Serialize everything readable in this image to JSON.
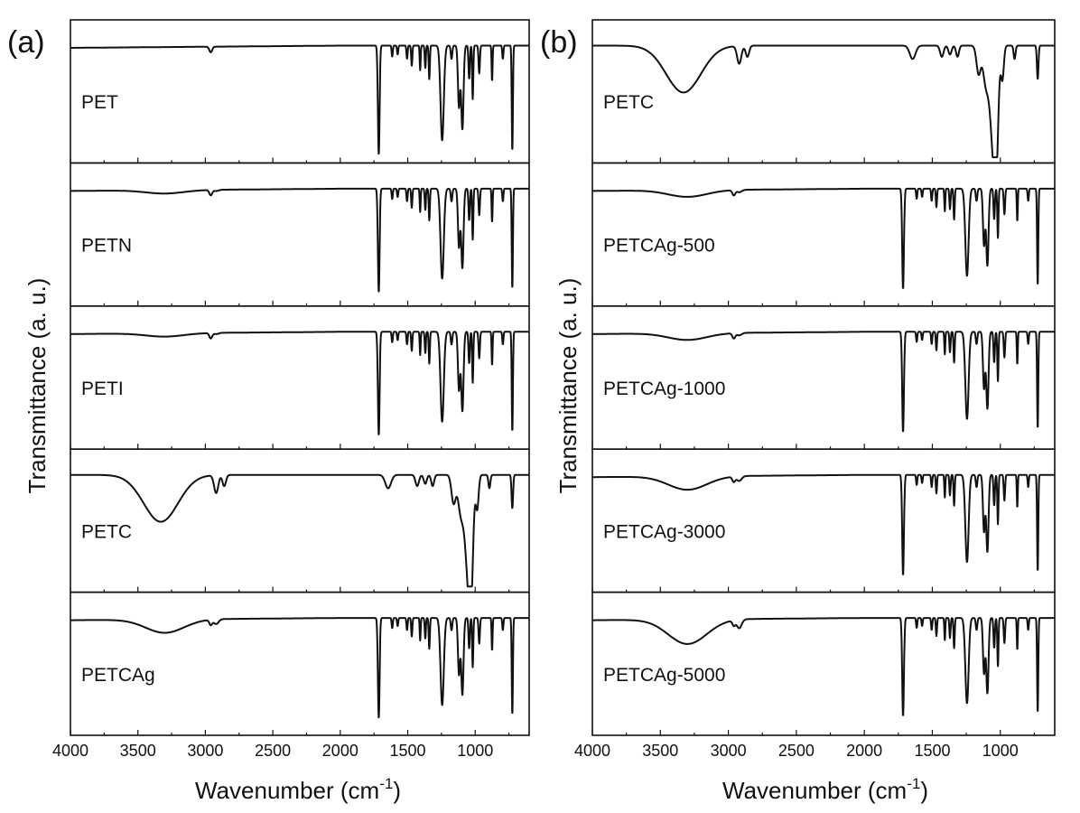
{
  "chart_data": [
    {
      "type": "line",
      "panel_label": "(a)",
      "xlabel": "Wavenumber (cm",
      "xlabel_sup": "-1",
      "xlabel_close": ")",
      "ylabel": "Transmittance (a. u.)",
      "xlim": [
        4000,
        600
      ],
      "x_reversed": true,
      "xticks": [
        "4000",
        "3500",
        "3000",
        "2500",
        "2000",
        "1500",
        "1000"
      ],
      "xtick_values": [
        4000,
        3500,
        3000,
        2500,
        2000,
        1500,
        1000
      ],
      "stacked": true,
      "series": [
        {
          "name": "PET",
          "profile": "pet"
        },
        {
          "name": "PETN",
          "profile": "pet_soft"
        },
        {
          "name": "PETI",
          "profile": "pet_soft"
        },
        {
          "name": "PETC",
          "profile": "cellulose"
        },
        {
          "name": "PETCAg",
          "profile": "petcag"
        }
      ]
    },
    {
      "type": "line",
      "panel_label": "(b)",
      "xlabel": "Wavenumber (cm",
      "xlabel_sup": "-1",
      "xlabel_close": ")",
      "ylabel": "Transmittance (a. u.)",
      "xlim": [
        4000,
        600
      ],
      "x_reversed": true,
      "xticks": [
        "4000",
        "3500",
        "3000",
        "2500",
        "2000",
        "1500",
        "1000"
      ],
      "xtick_values": [
        4000,
        3500,
        3000,
        2500,
        2000,
        1500,
        1000
      ],
      "stacked": true,
      "series": [
        {
          "name": "PETC",
          "profile": "cellulose"
        },
        {
          "name": "PETCAg-500",
          "profile": "petcag_weak"
        },
        {
          "name": "PETCAg-1000",
          "profile": "petcag_weak"
        },
        {
          "name": "PETCAg-3000",
          "profile": "petcag"
        },
        {
          "name": "PETCAg-5000",
          "profile": "petcag_strong"
        }
      ]
    }
  ]
}
